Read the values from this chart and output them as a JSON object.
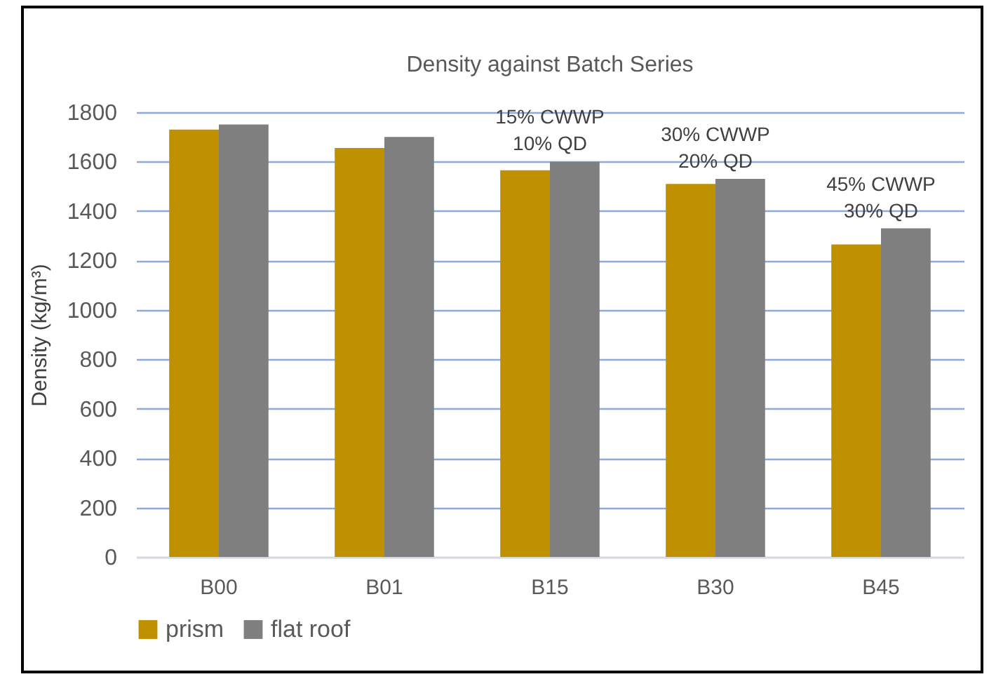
{
  "chart_data": {
    "type": "bar",
    "title": "Density against Batch Series",
    "ylabel": "Density (kg/m³)",
    "categories": [
      "B00",
      "B01",
      "B15",
      "B30",
      "B45"
    ],
    "series": [
      {
        "name": "prism",
        "color": "#bf9000",
        "values": [
          1730,
          1655,
          1565,
          1510,
          1265
        ]
      },
      {
        "name": "flat roof",
        "color": "#7f7f7f",
        "values": [
          1750,
          1700,
          1600,
          1530,
          1330
        ]
      }
    ],
    "ylim": [
      0,
      1800
    ],
    "yticks": [
      0,
      200,
      400,
      600,
      800,
      1000,
      1200,
      1400,
      1600,
      1800
    ],
    "grid": "y",
    "legend": "bottom",
    "annotations": [
      {
        "text": "15% CWWP\n10% QD",
        "x": "B15",
        "y": 1600
      },
      {
        "text": "30% CWWP\n20% QD",
        "x": "B30",
        "y": 1530
      },
      {
        "text": "45% CWWP\n30% QD",
        "x": "B45",
        "y": 1330
      }
    ]
  }
}
